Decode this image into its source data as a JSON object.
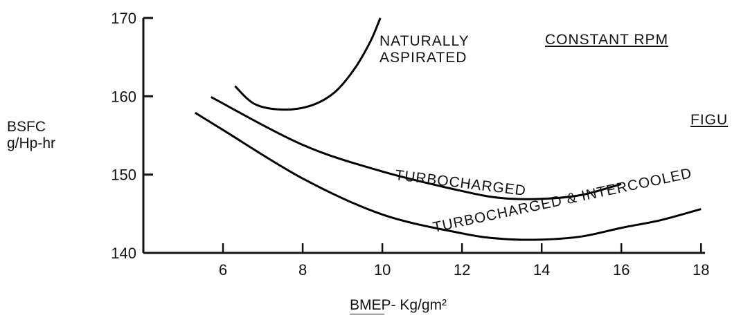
{
  "chart_data": {
    "type": "line",
    "x_label": "BMEP- Kg/gm²",
    "y_label": "BSFC g/Hp-hr",
    "annotations": [
      "CONSTANT RPM",
      "FIGU"
    ],
    "xlim": [
      4,
      18.1
    ],
    "xticks": [
      6,
      8,
      10,
      12,
      14,
      16,
      18
    ],
    "ylim": [
      140,
      170
    ],
    "yticks": [
      140,
      150,
      160,
      170
    ],
    "series": [
      {
        "name": "NATURALLY ASPIRATED",
        "color": "#000000",
        "x": [
          6.3,
          6.8,
          7.5,
          8.2,
          8.8,
          9.3,
          9.7,
          9.95
        ],
        "values": [
          161.3,
          159,
          158.3,
          158.8,
          160.5,
          163.5,
          167,
          170
        ]
      },
      {
        "name": "TURBOCHARGED",
        "color": "#000000",
        "x": [
          5.7,
          8,
          10,
          12,
          13,
          14,
          15,
          16
        ],
        "values": [
          159.9,
          153.8,
          150.4,
          147.9,
          147,
          146.9,
          147.4,
          148.8
        ]
      },
      {
        "name": "TURBOCHARGED & INTERCOOLED",
        "color": "#000000",
        "x": [
          5.3,
          6,
          8,
          10,
          12,
          13,
          14,
          15,
          16,
          17,
          18
        ],
        "values": [
          157.9,
          155.7,
          149.5,
          144.9,
          142.5,
          141.8,
          141.7,
          142.1,
          143.2,
          144.2,
          145.6
        ]
      }
    ]
  }
}
